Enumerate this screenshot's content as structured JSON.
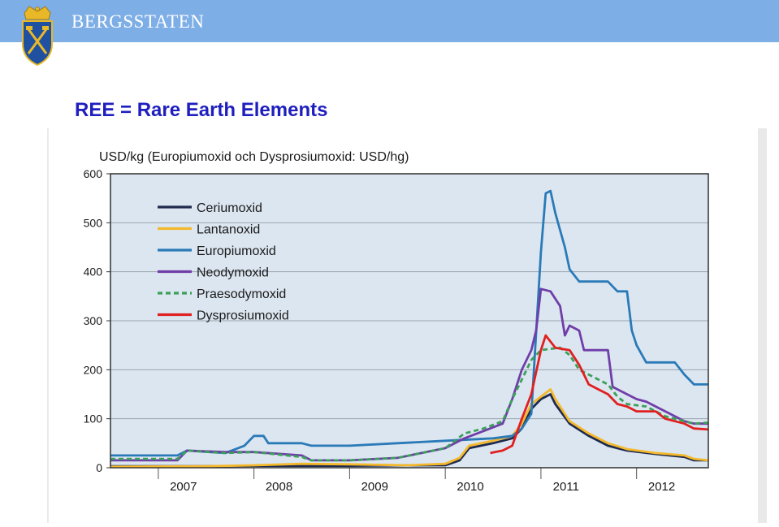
{
  "header": {
    "brand": "BERGSSTATEN"
  },
  "slide": {
    "title": "REE = Rare Earth Elements"
  },
  "colors": {
    "header_bg": "#7eaee6",
    "plot_bg": "#dce6f0",
    "title_blue": "#1f1fbf"
  },
  "chart_data": {
    "type": "line",
    "title": "",
    "ylabel": "USD/kg (Europiumoxid och Dysprosiumoxid: USD/hg)",
    "xlabel": "",
    "ylim": [
      0,
      600
    ],
    "xlim": [
      2006.5,
      2012.75
    ],
    "yticks": [
      0,
      100,
      200,
      300,
      400,
      500,
      600
    ],
    "xtick_labels": [
      "2007",
      "2008",
      "2009",
      "2010",
      "2011",
      "2012"
    ],
    "grid": "horizontal",
    "legend_position": "top-left",
    "series": [
      {
        "name": "Ceriumoxid",
        "color": "#1f2a4f",
        "dash": "",
        "points": [
          [
            2006.5,
            3
          ],
          [
            2007.5,
            3
          ],
          [
            2008.0,
            4
          ],
          [
            2008.6,
            4
          ],
          [
            2009.0,
            4
          ],
          [
            2009.6,
            5
          ],
          [
            2010.0,
            5
          ],
          [
            2010.15,
            15
          ],
          [
            2010.25,
            40
          ],
          [
            2010.5,
            50
          ],
          [
            2010.7,
            60
          ],
          [
            2010.8,
            80
          ],
          [
            2010.9,
            120
          ],
          [
            2011.0,
            140
          ],
          [
            2011.05,
            145
          ],
          [
            2011.1,
            150
          ],
          [
            2011.15,
            130
          ],
          [
            2011.3,
            90
          ],
          [
            2011.5,
            65
          ],
          [
            2011.7,
            45
          ],
          [
            2011.9,
            35
          ],
          [
            2012.2,
            28
          ],
          [
            2012.5,
            22
          ],
          [
            2012.6,
            15
          ],
          [
            2012.75,
            15
          ]
        ]
      },
      {
        "name": "Lantanoxid",
        "color": "#f4b82b",
        "dash": "",
        "points": [
          [
            2006.5,
            2
          ],
          [
            2007.5,
            3
          ],
          [
            2008.0,
            5
          ],
          [
            2008.5,
            8
          ],
          [
            2009.0,
            7
          ],
          [
            2009.6,
            5
          ],
          [
            2010.0,
            8
          ],
          [
            2010.15,
            20
          ],
          [
            2010.25,
            45
          ],
          [
            2010.5,
            55
          ],
          [
            2010.7,
            65
          ],
          [
            2010.8,
            90
          ],
          [
            2010.9,
            130
          ],
          [
            2011.0,
            145
          ],
          [
            2011.1,
            160
          ],
          [
            2011.15,
            140
          ],
          [
            2011.3,
            95
          ],
          [
            2011.5,
            70
          ],
          [
            2011.7,
            50
          ],
          [
            2011.9,
            38
          ],
          [
            2012.2,
            30
          ],
          [
            2012.5,
            25
          ],
          [
            2012.6,
            18
          ],
          [
            2012.75,
            15
          ]
        ]
      },
      {
        "name": "Europiumoxid",
        "color": "#2a7ab8",
        "dash": "",
        "points": [
          [
            2006.5,
            25
          ],
          [
            2007.2,
            25
          ],
          [
            2007.3,
            35
          ],
          [
            2007.7,
            30
          ],
          [
            2007.9,
            45
          ],
          [
            2008.0,
            65
          ],
          [
            2008.1,
            65
          ],
          [
            2008.15,
            50
          ],
          [
            2008.5,
            50
          ],
          [
            2008.6,
            45
          ],
          [
            2009.0,
            45
          ],
          [
            2009.5,
            50
          ],
          [
            2010.0,
            55
          ],
          [
            2010.5,
            60
          ],
          [
            2010.7,
            65
          ],
          [
            2010.8,
            80
          ],
          [
            2010.9,
            110
          ],
          [
            2011.0,
            440
          ],
          [
            2011.05,
            560
          ],
          [
            2011.1,
            565
          ],
          [
            2011.15,
            520
          ],
          [
            2011.25,
            450
          ],
          [
            2011.3,
            405
          ],
          [
            2011.4,
            380
          ],
          [
            2011.7,
            380
          ],
          [
            2011.8,
            360
          ],
          [
            2011.9,
            360
          ],
          [
            2011.95,
            280
          ],
          [
            2012.0,
            250
          ],
          [
            2012.1,
            215
          ],
          [
            2012.4,
            215
          ],
          [
            2012.5,
            190
          ],
          [
            2012.6,
            170
          ],
          [
            2012.75,
            170
          ]
        ]
      },
      {
        "name": "Neodymoxid",
        "color": "#6f3ea8",
        "dash": "",
        "points": [
          [
            2006.5,
            15
          ],
          [
            2007.2,
            15
          ],
          [
            2007.3,
            35
          ],
          [
            2007.7,
            32
          ],
          [
            2008.0,
            32
          ],
          [
            2008.5,
            25
          ],
          [
            2008.6,
            15
          ],
          [
            2009.0,
            15
          ],
          [
            2009.5,
            20
          ],
          [
            2010.0,
            40
          ],
          [
            2010.2,
            60
          ],
          [
            2010.4,
            75
          ],
          [
            2010.6,
            90
          ],
          [
            2010.7,
            140
          ],
          [
            2010.8,
            200
          ],
          [
            2010.9,
            240
          ],
          [
            2010.95,
            280
          ],
          [
            2011.0,
            365
          ],
          [
            2011.1,
            360
          ],
          [
            2011.2,
            330
          ],
          [
            2011.25,
            270
          ],
          [
            2011.3,
            290
          ],
          [
            2011.4,
            280
          ],
          [
            2011.45,
            240
          ],
          [
            2011.7,
            240
          ],
          [
            2011.75,
            165
          ],
          [
            2011.9,
            150
          ],
          [
            2012.0,
            140
          ],
          [
            2012.1,
            135
          ],
          [
            2012.3,
            115
          ],
          [
            2012.5,
            95
          ],
          [
            2012.6,
            90
          ],
          [
            2012.75,
            90
          ]
        ]
      },
      {
        "name": "Praesodymoxid",
        "color": "#3aa05a",
        "dash": "6,4",
        "points": [
          [
            2006.5,
            18
          ],
          [
            2007.2,
            18
          ],
          [
            2007.3,
            35
          ],
          [
            2007.7,
            30
          ],
          [
            2008.0,
            32
          ],
          [
            2008.5,
            22
          ],
          [
            2008.6,
            15
          ],
          [
            2009.0,
            15
          ],
          [
            2009.5,
            20
          ],
          [
            2010.0,
            40
          ],
          [
            2010.2,
            70
          ],
          [
            2010.4,
            80
          ],
          [
            2010.6,
            95
          ],
          [
            2010.7,
            140
          ],
          [
            2010.8,
            180
          ],
          [
            2010.9,
            220
          ],
          [
            2011.0,
            240
          ],
          [
            2011.2,
            245
          ],
          [
            2011.3,
            230
          ],
          [
            2011.4,
            200
          ],
          [
            2011.6,
            180
          ],
          [
            2011.7,
            170
          ],
          [
            2011.8,
            145
          ],
          [
            2011.9,
            130
          ],
          [
            2012.1,
            125
          ],
          [
            2012.3,
            105
          ],
          [
            2012.5,
            95
          ],
          [
            2012.6,
            90
          ],
          [
            2012.75,
            92
          ]
        ]
      },
      {
        "name": "Dysprosiumoxid",
        "color": "#e02020",
        "dash": "",
        "points": [
          [
            2010.47,
            30
          ],
          [
            2010.6,
            35
          ],
          [
            2010.7,
            45
          ],
          [
            2010.8,
            100
          ],
          [
            2010.9,
            150
          ],
          [
            2011.0,
            240
          ],
          [
            2011.05,
            270
          ],
          [
            2011.15,
            245
          ],
          [
            2011.3,
            240
          ],
          [
            2011.4,
            210
          ],
          [
            2011.5,
            170
          ],
          [
            2011.6,
            160
          ],
          [
            2011.7,
            150
          ],
          [
            2011.8,
            130
          ],
          [
            2011.9,
            125
          ],
          [
            2012.0,
            115
          ],
          [
            2012.2,
            115
          ],
          [
            2012.3,
            100
          ],
          [
            2012.5,
            90
          ],
          [
            2012.6,
            80
          ],
          [
            2012.75,
            78
          ]
        ]
      }
    ]
  }
}
